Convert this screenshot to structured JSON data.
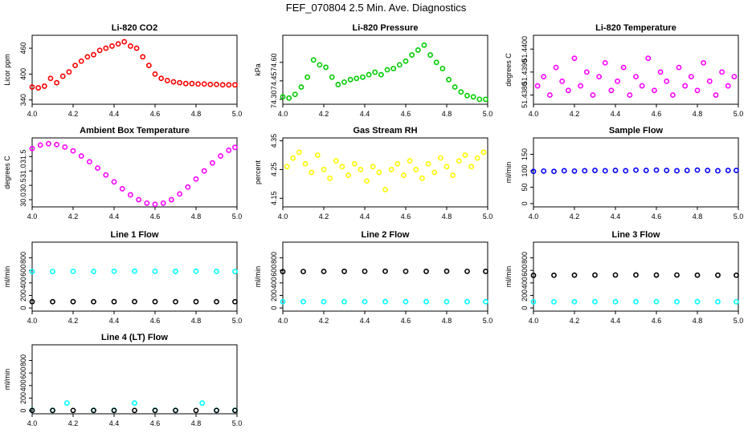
{
  "title": "FEF_070804  2.5 Min. Ave. Diagnostics",
  "colors": {
    "red": "#ff0000",
    "green": "#00cc00",
    "magenta": "#ff00ff",
    "yellow": "#ffff00",
    "blue": "#0000ff",
    "cyan": "#00ffff",
    "black": "#000000"
  },
  "chart_data": [
    {
      "type": "scatter",
      "title": "Li-820 CO2",
      "xlabel": "",
      "ylabel": "Licor ppm",
      "xlim": [
        4.0,
        5.0
      ],
      "ylim": [
        330,
        490
      ],
      "xticks": [
        4.0,
        4.2,
        4.4,
        4.6,
        4.8,
        5.0
      ],
      "xtick_labels": [
        "4.0",
        "4.2",
        "4.4",
        "4.6",
        "4.8",
        "5.0"
      ],
      "yticks": [
        340,
        400,
        460
      ],
      "ytick_labels": [
        "340",
        "400",
        "460"
      ],
      "series": [
        {
          "color": "red",
          "x": [
            4.0,
            4.03,
            4.06,
            4.09,
            4.12,
            4.15,
            4.18,
            4.21,
            4.24,
            4.27,
            4.3,
            4.33,
            4.36,
            4.39,
            4.42,
            4.45,
            4.48,
            4.51,
            4.54,
            4.57,
            4.6,
            4.63,
            4.66,
            4.69,
            4.72,
            4.75,
            4.78,
            4.81,
            4.84,
            4.87,
            4.9,
            4.93,
            4.96,
            4.99
          ],
          "y": [
            370,
            368,
            372,
            390,
            380,
            395,
            405,
            420,
            430,
            440,
            445,
            455,
            460,
            465,
            470,
            475,
            465,
            460,
            440,
            420,
            400,
            390,
            385,
            382,
            380,
            378,
            378,
            377,
            377,
            376,
            376,
            375,
            375,
            375
          ]
        }
      ]
    },
    {
      "type": "scatter",
      "title": "Li-820 Pressure",
      "xlabel": "",
      "ylabel": "kPa",
      "xlim": [
        4.0,
        5.0
      ],
      "ylim": [
        74.26,
        74.82
      ],
      "xticks": [
        4.0,
        4.2,
        4.4,
        4.6,
        4.8,
        5.0
      ],
      "xtick_labels": [
        "4.0",
        "4.2",
        "4.4",
        "4.6",
        "4.8",
        "5.0"
      ],
      "yticks": [
        74.3,
        74.45,
        74.6
      ],
      "ytick_labels": [
        "74.30",
        "74.45",
        "74.60"
      ],
      "series": [
        {
          "color": "green",
          "x": [
            4.0,
            4.03,
            4.06,
            4.09,
            4.12,
            4.15,
            4.18,
            4.21,
            4.24,
            4.27,
            4.3,
            4.33,
            4.36,
            4.39,
            4.42,
            4.45,
            4.48,
            4.51,
            4.54,
            4.57,
            4.6,
            4.63,
            4.66,
            4.69,
            4.72,
            4.75,
            4.78,
            4.81,
            4.84,
            4.87,
            4.9,
            4.93,
            4.96,
            4.99
          ],
          "y": [
            74.32,
            74.31,
            74.34,
            74.4,
            74.48,
            74.62,
            74.58,
            74.56,
            74.48,
            74.42,
            74.44,
            74.46,
            74.47,
            74.48,
            74.5,
            74.52,
            74.5,
            74.54,
            74.55,
            74.58,
            74.61,
            74.66,
            74.7,
            74.74,
            74.66,
            74.6,
            74.55,
            74.46,
            74.4,
            74.36,
            74.33,
            74.32,
            74.3,
            74.3
          ]
        }
      ]
    },
    {
      "type": "scatter",
      "title": "Li-820 Temperature",
      "xlabel": "",
      "ylabel": "degrees C",
      "xlim": [
        4.0,
        5.0
      ],
      "ylim": [
        51.4376,
        51.4406
      ],
      "xticks": [
        4.0,
        4.2,
        4.4,
        4.6,
        4.8,
        5.0
      ],
      "xtick_labels": [
        "4.0",
        "4.2",
        "4.4",
        "4.6",
        "4.8",
        "5.0"
      ],
      "yticks": [
        51.438,
        51.439,
        51.44
      ],
      "ytick_labels": [
        "51.4380",
        "51.4390",
        "51.4400"
      ],
      "series": [
        {
          "color": "magenta",
          "x": [
            4.02,
            4.05,
            4.08,
            4.11,
            4.14,
            4.17,
            4.2,
            4.23,
            4.26,
            4.29,
            4.32,
            4.35,
            4.38,
            4.41,
            4.44,
            4.47,
            4.5,
            4.53,
            4.56,
            4.59,
            4.62,
            4.65,
            4.68,
            4.71,
            4.74,
            4.77,
            4.8,
            4.83,
            4.86,
            4.89,
            4.92,
            4.95,
            4.98
          ],
          "y": [
            51.4384,
            51.4388,
            51.438,
            51.4392,
            51.4386,
            51.4382,
            51.4396,
            51.4384,
            51.439,
            51.438,
            51.4388,
            51.4394,
            51.4382,
            51.4386,
            51.4392,
            51.438,
            51.4388,
            51.4384,
            51.4396,
            51.4382,
            51.439,
            51.4386,
            51.438,
            51.4392,
            51.4384,
            51.4388,
            51.4382,
            51.4394,
            51.4386,
            51.438,
            51.439,
            51.4384,
            51.4388
          ]
        }
      ]
    },
    {
      "type": "scatter",
      "title": "Ambient Box Temperature",
      "xlabel": "",
      "ylabel": "degrees C",
      "xlim": [
        4.0,
        5.0
      ],
      "ylim": [
        29.75,
        32.15
      ],
      "xticks": [
        4.0,
        4.2,
        4.4,
        4.6,
        4.8,
        5.0
      ],
      "xtick_labels": [
        "4.0",
        "4.2",
        "4.4",
        "4.6",
        "4.8",
        "5.0"
      ],
      "yticks": [
        30.0,
        30.5,
        31.0,
        31.5
      ],
      "ytick_labels": [
        "30.0",
        "30.5",
        "31.0",
        "31.5"
      ],
      "series": [
        {
          "color": "magenta",
          "x": [
            4.0,
            4.04,
            4.08,
            4.12,
            4.16,
            4.2,
            4.24,
            4.28,
            4.32,
            4.36,
            4.4,
            4.44,
            4.48,
            4.52,
            4.56,
            4.6,
            4.64,
            4.68,
            4.72,
            4.76,
            4.8,
            4.84,
            4.88,
            4.92,
            4.96,
            4.99
          ],
          "y": [
            31.78,
            31.9,
            31.95,
            31.92,
            31.83,
            31.7,
            31.52,
            31.32,
            31.1,
            30.86,
            30.62,
            30.38,
            30.17,
            30.0,
            29.88,
            29.84,
            29.88,
            30.0,
            30.2,
            30.44,
            30.72,
            31.0,
            31.28,
            31.52,
            31.72,
            31.82
          ]
        }
      ]
    },
    {
      "type": "scatter",
      "title": "Gas Stream RH",
      "xlabel": "",
      "ylabel": "percent",
      "xlim": [
        4.0,
        5.0
      ],
      "ylim": [
        4.12,
        4.36
      ],
      "xticks": [
        4.0,
        4.2,
        4.4,
        4.6,
        4.8,
        5.0
      ],
      "xtick_labels": [
        "4.0",
        "4.2",
        "4.4",
        "4.6",
        "4.8",
        "5.0"
      ],
      "yticks": [
        4.15,
        4.25,
        4.35
      ],
      "ytick_labels": [
        "4.15",
        "4.25",
        "4.35"
      ],
      "series": [
        {
          "color": "yellow",
          "x": [
            4.02,
            4.05,
            4.08,
            4.11,
            4.14,
            4.17,
            4.2,
            4.23,
            4.26,
            4.29,
            4.32,
            4.35,
            4.38,
            4.41,
            4.44,
            4.47,
            4.5,
            4.53,
            4.56,
            4.59,
            4.62,
            4.65,
            4.68,
            4.71,
            4.74,
            4.77,
            4.8,
            4.83,
            4.86,
            4.89,
            4.92,
            4.95,
            4.98
          ],
          "y": [
            4.26,
            4.29,
            4.31,
            4.27,
            4.24,
            4.3,
            4.25,
            4.22,
            4.28,
            4.26,
            4.23,
            4.27,
            4.25,
            4.21,
            4.26,
            4.24,
            4.18,
            4.25,
            4.27,
            4.23,
            4.28,
            4.25,
            4.22,
            4.27,
            4.24,
            4.29,
            4.26,
            4.23,
            4.28,
            4.3,
            4.26,
            4.29,
            4.31
          ]
        }
      ]
    },
    {
      "type": "scatter",
      "title": "Sample Flow",
      "xlabel": "",
      "ylabel": "ml/min",
      "xlim": [
        4.0,
        5.0
      ],
      "ylim": [
        -10,
        200
      ],
      "xticks": [
        4.0,
        4.2,
        4.4,
        4.6,
        4.8,
        5.0
      ],
      "xtick_labels": [
        "4.0",
        "4.2",
        "4.4",
        "4.6",
        "4.8",
        "5.0"
      ],
      "yticks": [
        0,
        50,
        100,
        150
      ],
      "ytick_labels": [
        "0",
        "50",
        "100",
        "150"
      ],
      "series": [
        {
          "color": "blue",
          "x": [
            4.0,
            4.05,
            4.1,
            4.15,
            4.2,
            4.25,
            4.3,
            4.35,
            4.4,
            4.45,
            4.5,
            4.55,
            4.6,
            4.65,
            4.7,
            4.75,
            4.8,
            4.85,
            4.9,
            4.95,
            4.99
          ],
          "y": [
            98,
            99,
            98,
            100,
            99,
            100,
            101,
            100,
            101,
            100,
            102,
            101,
            102,
            101,
            100,
            101,
            102,
            101,
            100,
            101,
            101
          ]
        }
      ]
    },
    {
      "type": "scatter",
      "title": "Line 1 Flow",
      "xlabel": "",
      "ylabel": "ml/min",
      "xlim": [
        4.0,
        5.0
      ],
      "ylim": [
        -50,
        1050
      ],
      "xticks": [
        4.0,
        4.2,
        4.4,
        4.6,
        4.8,
        5.0
      ],
      "xtick_labels": [
        "4.0",
        "4.2",
        "4.4",
        "4.6",
        "4.8",
        "5.0"
      ],
      "yticks": [
        0,
        200,
        400,
        600,
        800
      ],
      "ytick_labels": [
        "0",
        "200",
        "400",
        "600",
        "800"
      ],
      "series": [
        {
          "color": "cyan",
          "x": [
            4.0,
            4.1,
            4.2,
            4.3,
            4.4,
            4.5,
            4.6,
            4.7,
            4.8,
            4.9,
            4.99
          ],
          "y": [
            580,
            582,
            585,
            583,
            586,
            588,
            585,
            584,
            586,
            583,
            582
          ]
        },
        {
          "color": "black",
          "x": [
            4.0,
            4.1,
            4.2,
            4.3,
            4.4,
            4.5,
            4.6,
            4.7,
            4.8,
            4.9,
            4.99
          ],
          "y": [
            100,
            100,
            101,
            100,
            101,
            102,
            101,
            100,
            101,
            100,
            100
          ]
        }
      ]
    },
    {
      "type": "scatter",
      "title": "Line 2 Flow",
      "xlabel": "",
      "ylabel": "ml/min",
      "xlim": [
        4.0,
        5.0
      ],
      "ylim": [
        -50,
        1050
      ],
      "xticks": [
        4.0,
        4.2,
        4.4,
        4.6,
        4.8,
        5.0
      ],
      "xtick_labels": [
        "4.0",
        "4.2",
        "4.4",
        "4.6",
        "4.8",
        "5.0"
      ],
      "yticks": [
        0,
        200,
        400,
        600,
        800
      ],
      "ytick_labels": [
        "0",
        "200",
        "400",
        "600",
        "800"
      ],
      "series": [
        {
          "color": "cyan",
          "x": [
            4.0,
            4.1,
            4.2,
            4.3,
            4.4,
            4.5,
            4.6,
            4.7,
            4.8,
            4.9,
            4.99
          ],
          "y": [
            100,
            101,
            100,
            101,
            102,
            101,
            100,
            101,
            100,
            101,
            100
          ]
        },
        {
          "color": "black",
          "x": [
            4.0,
            4.1,
            4.2,
            4.3,
            4.4,
            4.5,
            4.6,
            4.7,
            4.8,
            4.9,
            4.99
          ],
          "y": [
            580,
            582,
            583,
            584,
            585,
            586,
            585,
            584,
            586,
            585,
            584
          ]
        }
      ]
    },
    {
      "type": "scatter",
      "title": "Line 3 Flow",
      "xlabel": "",
      "ylabel": "ml/min",
      "xlim": [
        4.0,
        5.0
      ],
      "ylim": [
        -50,
        1050
      ],
      "xticks": [
        4.0,
        4.2,
        4.4,
        4.6,
        4.8,
        5.0
      ],
      "xtick_labels": [
        "4.0",
        "4.2",
        "4.4",
        "4.6",
        "4.8",
        "5.0"
      ],
      "yticks": [
        0,
        200,
        400,
        600,
        800
      ],
      "ytick_labels": [
        "0",
        "200",
        "400",
        "600",
        "800"
      ],
      "series": [
        {
          "color": "cyan",
          "x": [
            4.0,
            4.1,
            4.2,
            4.3,
            4.4,
            4.5,
            4.6,
            4.7,
            4.8,
            4.9,
            4.99
          ],
          "y": [
            98,
            99,
            100,
            101,
            100,
            101,
            102,
            100,
            101,
            100,
            99
          ]
        },
        {
          "color": "black",
          "x": [
            4.0,
            4.1,
            4.2,
            4.3,
            4.4,
            4.5,
            4.6,
            4.7,
            4.8,
            4.9,
            4.99
          ],
          "y": [
            520,
            522,
            524,
            525,
            526,
            527,
            525,
            526,
            524,
            523,
            522
          ]
        }
      ]
    },
    {
      "type": "scatter",
      "title": "Line 4 (LT) Flow",
      "xlabel": "",
      "ylabel": "ml/min",
      "xlim": [
        4.0,
        5.0
      ],
      "ylim": [
        -50,
        1050
      ],
      "xticks": [
        4.0,
        4.2,
        4.4,
        4.6,
        4.8,
        5.0
      ],
      "xtick_labels": [
        "4.0",
        "4.2",
        "4.4",
        "4.6",
        "4.8",
        "5.0"
      ],
      "yticks": [
        0,
        200,
        400,
        600,
        800
      ],
      "ytick_labels": [
        "0",
        "200",
        "400",
        "600",
        "800"
      ],
      "series": [
        {
          "color": "cyan",
          "x": [
            4.0,
            4.1,
            4.17,
            4.3,
            4.4,
            4.5,
            4.6,
            4.7,
            4.83,
            4.9,
            4.99
          ],
          "y": [
            5,
            5,
            120,
            5,
            5,
            120,
            5,
            5,
            120,
            5,
            5
          ]
        },
        {
          "color": "black",
          "x": [
            4.0,
            4.1,
            4.2,
            4.3,
            4.4,
            4.5,
            4.6,
            4.7,
            4.8,
            4.9,
            4.99
          ],
          "y": [
            3,
            3,
            3,
            3,
            3,
            3,
            3,
            3,
            3,
            3,
            3
          ]
        }
      ]
    }
  ]
}
